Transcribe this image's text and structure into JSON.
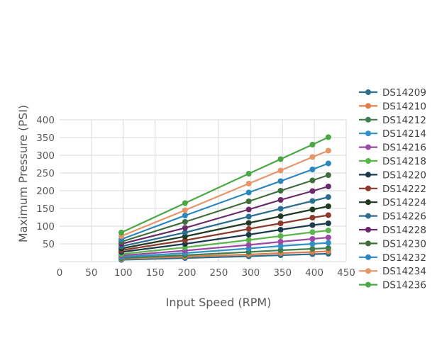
{
  "chart_data": {
    "type": "line",
    "xlabel": "Input Speed (RPM)",
    "ylabel": "Maximum Pressure (PSI)",
    "xlim": [
      0,
      450
    ],
    "ylim": [
      0,
      400
    ],
    "xticks": [
      0,
      50,
      100,
      150,
      200,
      250,
      300,
      350,
      400,
      450
    ],
    "yticks": [
      50,
      100,
      150,
      200,
      250,
      300,
      350,
      400
    ],
    "grid": "vertical and horizontal",
    "legend_position": "right",
    "x": [
      97,
      197,
      297,
      347,
      397,
      422
    ],
    "series": [
      {
        "name": "DS14209",
        "color": "#2e6f8e",
        "values": [
          5,
          10,
          15,
          18,
          21,
          22
        ]
      },
      {
        "name": "DS14210",
        "color": "#e07b4a",
        "values": [
          8,
          14,
          20,
          24,
          27,
          29
        ]
      },
      {
        "name": "DS14212",
        "color": "#3f7f4f",
        "values": [
          10,
          18,
          27,
          32,
          36,
          38
        ]
      },
      {
        "name": "DS14214",
        "color": "#2f92c6",
        "values": [
          13,
          24,
          37,
          44,
          50,
          53
        ]
      },
      {
        "name": "DS14216",
        "color": "#9a4aa6",
        "values": [
          17,
          31,
          47,
          56,
          64,
          68
        ]
      },
      {
        "name": "DS14218",
        "color": "#5ab54a",
        "values": [
          21,
          40,
          61,
          72,
          83,
          88
        ]
      },
      {
        "name": "DS14220",
        "color": "#1a3a4a",
        "values": [
          27,
          50,
          76,
          90,
          103,
          108
        ]
      },
      {
        "name": "DS14222",
        "color": "#8b3a2a",
        "values": [
          32,
          60,
          92,
          108,
          124,
          131
        ]
      },
      {
        "name": "DS14224",
        "color": "#1f3a20",
        "values": [
          37,
          71,
          109,
          128,
          147,
          156
        ]
      },
      {
        "name": "DS14226",
        "color": "#2c6e8f",
        "values": [
          43,
          82,
          127,
          149,
          171,
          182
        ]
      },
      {
        "name": "DS14228",
        "color": "#6a2a6a",
        "values": [
          50,
          95,
          147,
          174,
          199,
          212
        ]
      },
      {
        "name": "DS14230",
        "color": "#3e6e3a",
        "values": [
          56,
          112,
          170,
          200,
          229,
          244
        ]
      },
      {
        "name": "DS14232",
        "color": "#2b86bd",
        "values": [
          63,
          130,
          195,
          227,
          260,
          277
        ]
      },
      {
        "name": "DS14234",
        "color": "#e59568",
        "values": [
          72,
          145,
          220,
          257,
          295,
          313
        ]
      },
      {
        "name": "DS14236",
        "color": "#49a845",
        "values": [
          82,
          165,
          248,
          289,
          330,
          351
        ]
      }
    ]
  }
}
